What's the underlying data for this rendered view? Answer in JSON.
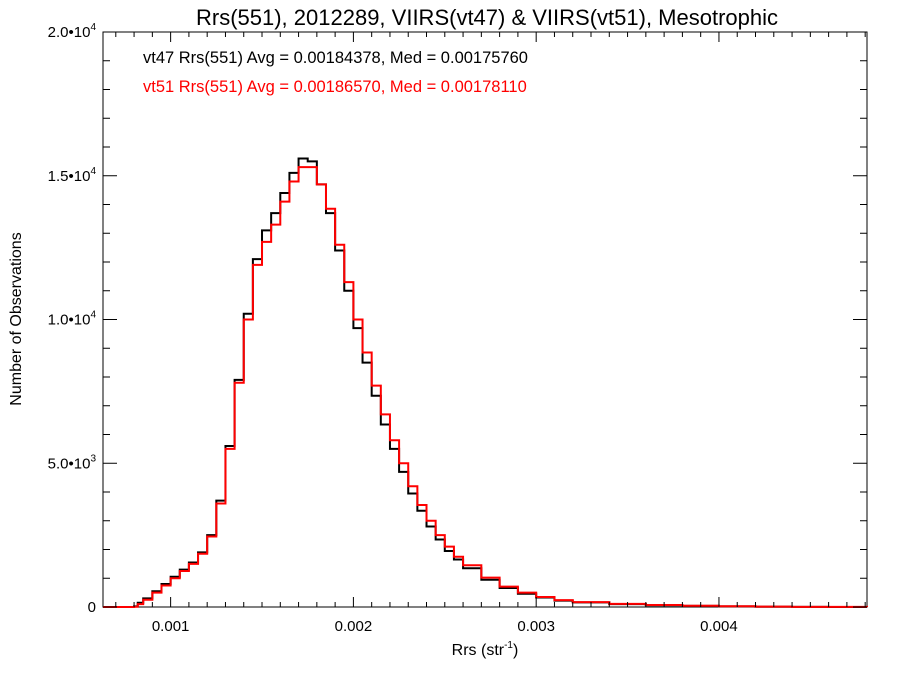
{
  "chart_data": {
    "type": "line",
    "step": true,
    "title": "Rrs(551), 2012289, VIIRS(vt47) & VIIRS(vt51), Mesotrophic",
    "xlabel": {
      "base": "Rrs (str",
      "sup": "-1",
      "tail": ")"
    },
    "ylabel": "Number of Observations",
    "xlim": [
      0.00063,
      0.00481
    ],
    "ylim": [
      0,
      20000
    ],
    "x_ticks": [
      {
        "value": 0.001,
        "label": "0.001"
      },
      {
        "value": 0.002,
        "label": "0.002"
      },
      {
        "value": 0.003,
        "label": "0.003"
      },
      {
        "value": 0.004,
        "label": "0.004"
      }
    ],
    "y_ticks": [
      {
        "value": 0,
        "mant": "0",
        "exp": ""
      },
      {
        "value": 5000,
        "mant": "5.0•10",
        "exp": "3"
      },
      {
        "value": 10000,
        "mant": "1.0•10",
        "exp": "4"
      },
      {
        "value": 15000,
        "mant": "1.5•10",
        "exp": "4"
      },
      {
        "value": 20000,
        "mant": "2.0•10",
        "exp": "4"
      }
    ],
    "annotations": [
      {
        "text": "vt47 Rrs(551) Avg = 0.00184378, Med = 0.00175760",
        "color": "#000000"
      },
      {
        "text": "vt51 Rrs(551) Avg = 0.00186570, Med = 0.00178110",
        "color": "#ff0000"
      }
    ],
    "series": [
      {
        "color": "#000000",
        "x": [
          0.00063,
          0.0008,
          0.00082,
          0.00085,
          0.0009,
          0.00095,
          0.001,
          0.00105,
          0.0011,
          0.00115,
          0.0012,
          0.00125,
          0.0013,
          0.00135,
          0.0014,
          0.00145,
          0.0015,
          0.00155,
          0.0016,
          0.00165,
          0.0017,
          0.00175,
          0.0018,
          0.00185,
          0.0019,
          0.00195,
          0.002,
          0.00205,
          0.0021,
          0.00215,
          0.0022,
          0.00225,
          0.0023,
          0.00235,
          0.0024,
          0.00245,
          0.0025,
          0.00255,
          0.0026,
          0.0027,
          0.0028,
          0.0029,
          0.003,
          0.0031,
          0.0032,
          0.0034,
          0.0036,
          0.0038,
          0.004,
          0.0042,
          0.0044,
          0.0046,
          0.00481
        ],
        "y": [
          0,
          20,
          150,
          300,
          550,
          800,
          1050,
          1300,
          1550,
          1900,
          2500,
          3700,
          5600,
          7900,
          10200,
          12100,
          13100,
          13700,
          14400,
          15100,
          15600,
          15500,
          14700,
          13700,
          12400,
          11000,
          9700,
          8500,
          7350,
          6350,
          5500,
          4700,
          3950,
          3350,
          2800,
          2350,
          1950,
          1650,
          1350,
          950,
          660,
          460,
          330,
          220,
          160,
          100,
          60,
          40,
          20,
          10,
          5,
          2,
          0
        ]
      },
      {
        "color": "#ff0000",
        "x": [
          0.00063,
          0.0008,
          0.00082,
          0.00085,
          0.0009,
          0.00095,
          0.001,
          0.00105,
          0.0011,
          0.00115,
          0.0012,
          0.00125,
          0.0013,
          0.00135,
          0.0014,
          0.00145,
          0.0015,
          0.00155,
          0.0016,
          0.00165,
          0.0017,
          0.00175,
          0.0018,
          0.00185,
          0.0019,
          0.00195,
          0.002,
          0.00205,
          0.0021,
          0.00215,
          0.0022,
          0.00225,
          0.0023,
          0.00235,
          0.0024,
          0.00245,
          0.0025,
          0.00255,
          0.0026,
          0.0027,
          0.0028,
          0.0029,
          0.003,
          0.0031,
          0.0032,
          0.0034,
          0.0036,
          0.0038,
          0.004,
          0.0042,
          0.0044,
          0.0046,
          0.00481
        ],
        "y": [
          0,
          10,
          100,
          250,
          500,
          750,
          1000,
          1250,
          1500,
          1850,
          2450,
          3600,
          5500,
          7800,
          10000,
          11900,
          12700,
          13300,
          14100,
          14800,
          15300,
          15300,
          14700,
          13850,
          12600,
          11300,
          10000,
          8850,
          7700,
          6700,
          5800,
          5000,
          4200,
          3550,
          3000,
          2500,
          2100,
          1750,
          1450,
          1020,
          710,
          500,
          350,
          240,
          170,
          110,
          70,
          45,
          25,
          12,
          6,
          3,
          0
        ]
      }
    ]
  }
}
